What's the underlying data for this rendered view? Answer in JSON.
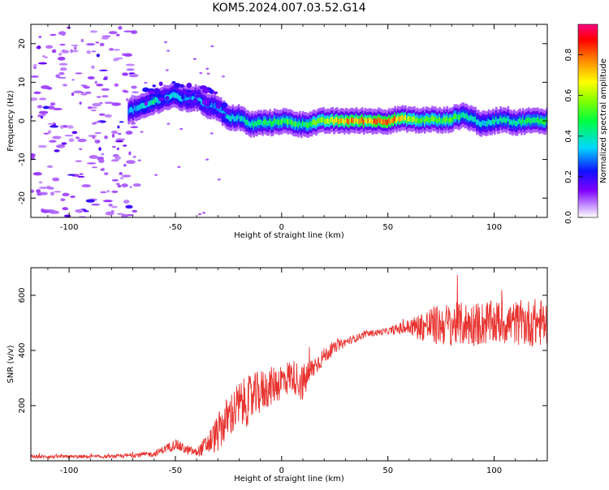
{
  "title": "KOM5.2024.007.03.52.G14",
  "colorbar": {
    "label": "Normalized spectral amplitude",
    "ticks": [
      "0.0",
      "0.2",
      "0.4",
      "0.6",
      "0.8"
    ],
    "tick_values": [
      0.0,
      0.2,
      0.4,
      0.6,
      0.8
    ],
    "range": [
      0.0,
      0.95
    ]
  },
  "chart_data": [
    {
      "type": "heatmap",
      "xlabel": "Height of straight line (km)",
      "ylabel": "Frequency (Hz)",
      "xlim": [
        -118,
        125
      ],
      "ylim": [
        -25,
        25
      ],
      "xticks": [
        -100,
        -50,
        0,
        50,
        100
      ],
      "yticks": [
        -20,
        -10,
        0,
        10,
        20
      ],
      "xtick_labels": [
        "-100",
        "-50",
        "0",
        "50",
        "100"
      ],
      "ytick_labels": [
        "-20",
        "-10",
        "0",
        "10",
        "20"
      ],
      "colormap": "rainbow (purple-blue-cyan-green-yellow-red-magenta)",
      "ridge": {
        "x": [
          -72,
          -66,
          -60,
          -55,
          -50,
          -45,
          -40,
          -35,
          -30,
          -25,
          -20,
          -15,
          -10,
          -5,
          0,
          5,
          10,
          20,
          30,
          40,
          50,
          55,
          60,
          65,
          70,
          75,
          80,
          85,
          90,
          95,
          100,
          105,
          110,
          115,
          120,
          125
        ],
        "y": [
          2.5,
          3.5,
          5,
          6,
          6.5,
          5.5,
          6,
          4,
          3.5,
          0.5,
          1,
          -1,
          -0.5,
          -0.5,
          0,
          -0.5,
          -1,
          0,
          0,
          0,
          0,
          0.5,
          0.5,
          0,
          0.5,
          0,
          0.5,
          1.5,
          0.5,
          -1,
          0,
          0.5,
          -0.5,
          0,
          0,
          0
        ],
        "amplitude": [
          0.3,
          0.35,
          0.4,
          0.35,
          0.4,
          0.3,
          0.35,
          0.3,
          0.3,
          0.4,
          0.35,
          0.4,
          0.45,
          0.45,
          0.5,
          0.5,
          0.45,
          0.6,
          0.75,
          0.75,
          0.85,
          0.7,
          0.6,
          0.5,
          0.55,
          0.5,
          0.5,
          0.45,
          0.4,
          0.35,
          0.4,
          0.4,
          0.4,
          0.45,
          0.45,
          0.5
        ]
      }
    },
    {
      "type": "line",
      "xlabel": "Height of straight line (km)",
      "ylabel": "SNR (v/v)",
      "xlim": [
        -118,
        125
      ],
      "ylim": [
        0,
        700
      ],
      "xticks": [
        -100,
        -50,
        0,
        50,
        100
      ],
      "yticks": [
        200,
        400,
        600
      ],
      "xtick_labels": [
        "-100",
        "-50",
        "0",
        "50",
        "100"
      ],
      "ytick_labels": [
        "200",
        "400",
        "600"
      ],
      "series": [
        {
          "color": "#e8332f",
          "x": [
            -118,
            -100,
            -80,
            -60,
            -50,
            -45,
            -40,
            -35,
            -30,
            -25,
            -20,
            -15,
            -10,
            -5,
            0,
            5,
            10,
            15,
            20,
            25,
            30,
            40,
            50,
            60,
            70,
            80,
            90,
            100,
            110,
            120,
            125
          ],
          "y": [
            15,
            15,
            15,
            25,
            60,
            40,
            30,
            60,
            100,
            160,
            200,
            220,
            250,
            270,
            290,
            310,
            280,
            340,
            380,
            410,
            430,
            460,
            470,
            485,
            490,
            495,
            495,
            500,
            500,
            500,
            500
          ],
          "jitter": [
            6,
            6,
            6,
            10,
            20,
            18,
            15,
            40,
            70,
            80,
            90,
            90,
            80,
            70,
            70,
            60,
            70,
            40,
            30,
            20,
            15,
            12,
            12,
            30,
            70,
            80,
            80,
            80,
            80,
            90,
            80
          ]
        }
      ]
    }
  ]
}
